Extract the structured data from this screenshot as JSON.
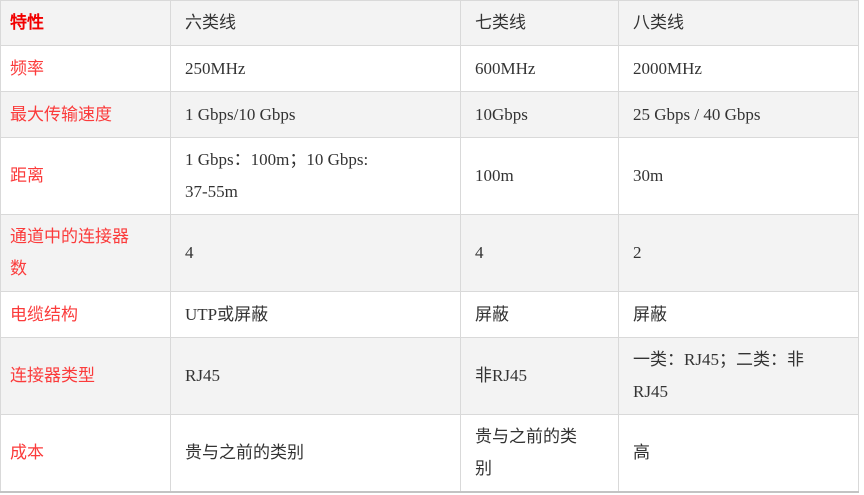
{
  "table": {
    "columns": [
      "特性",
      "六类线",
      "七类线",
      "八类线"
    ],
    "rows": [
      {
        "label": "频率",
        "cells": [
          "250MHz",
          "600MHz",
          "2000MHz"
        ]
      },
      {
        "label": "最大传输速度",
        "cells": [
          "1 Gbps/10 Gbps",
          "10Gbps",
          "25 Gbps / 40 Gbps"
        ]
      },
      {
        "label": "距离",
        "cells": [
          "1 Gbps：100m；10 Gbps:\n37-55m",
          "100m",
          "30m"
        ]
      },
      {
        "label": "通道中的连接器\n数",
        "cells": [
          "4",
          "4",
          "2"
        ]
      },
      {
        "label": "电缆结构",
        "cells": [
          "UTP或屏蔽",
          "屏蔽",
          "屏蔽"
        ]
      },
      {
        "label": "连接器类型",
        "cells": [
          "RJ45",
          "非RJ45",
          "一类：RJ45；二类：非\nRJ45"
        ]
      },
      {
        "label": "成本",
        "cells": [
          "贵与之前的类别",
          "贵与之前的类\n别",
          "高"
        ]
      }
    ],
    "colors": {
      "header_label_red": "#f20000",
      "row_label_red": "#fb3b3b",
      "body_text": "#333333",
      "stripe_background": "#f3f3f3",
      "cell_border": "#d9d9d9",
      "table_bottom_border": "#c3c3c3"
    }
  }
}
